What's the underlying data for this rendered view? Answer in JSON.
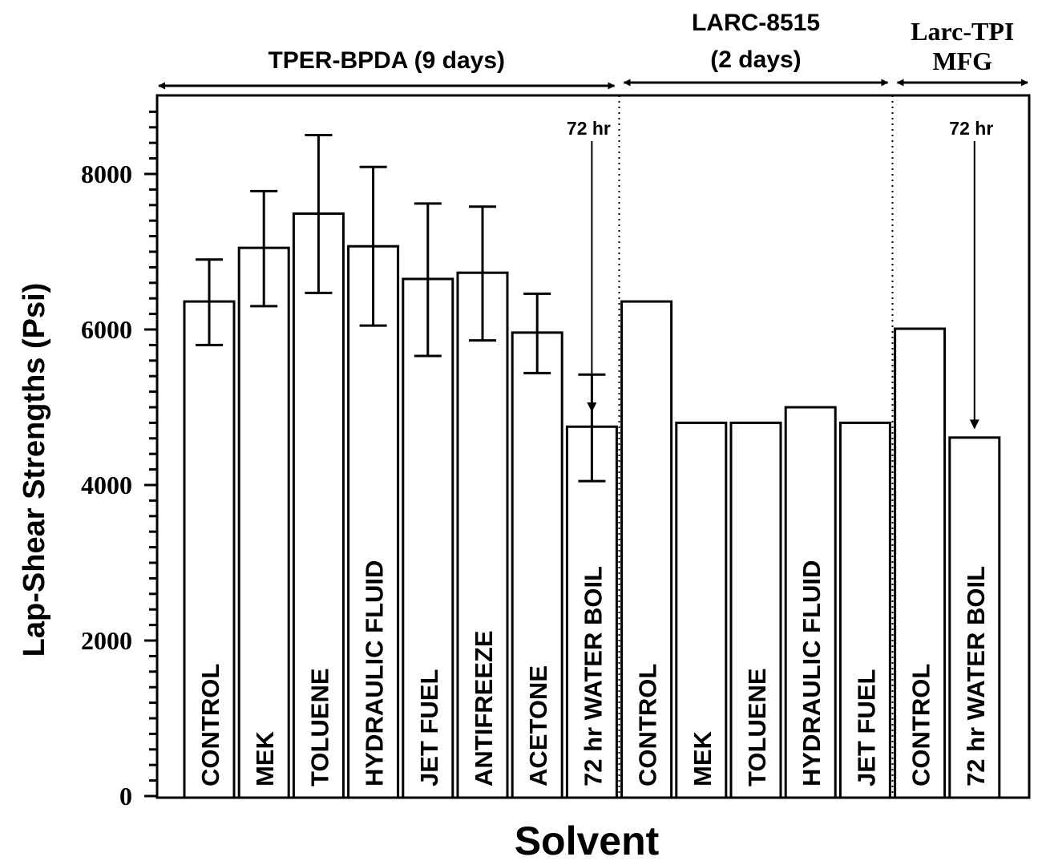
{
  "chart_data": {
    "type": "bar",
    "xlabel": "Solvent",
    "ylabel": "Lap-Shear Strengths (Psi)",
    "ylim": [
      0,
      8800
    ],
    "yticks": [
      0,
      2000,
      4000,
      6000,
      8000
    ],
    "yticks_minor_step": 200,
    "grid": false,
    "colors": {
      "bar_fill": "#ffffff",
      "stroke": "#000000"
    },
    "groups": [
      {
        "label": "TPER-BPDA (9 days)",
        "start": 0,
        "end": 8
      },
      {
        "label_lines": [
          "LARC-8515",
          "(2 days)"
        ],
        "start": 8,
        "end": 13
      },
      {
        "label_lines": [
          "Larc-TPI",
          "MFG"
        ],
        "start": 13,
        "end": 15
      }
    ],
    "bars": [
      {
        "category": "CONTROL",
        "value": 6360,
        "err_low": 5800,
        "err_high": 6900
      },
      {
        "category": "MEK",
        "value": 7050,
        "err_low": 6300,
        "err_high": 7780
      },
      {
        "category": "TOLUENE",
        "value": 7490,
        "err_low": 6470,
        "err_high": 8500
      },
      {
        "category": "HYDRAULIC FLUID",
        "value": 7070,
        "err_low": 6050,
        "err_high": 8090
      },
      {
        "category": "JET FUEL",
        "value": 6650,
        "err_low": 5660,
        "err_high": 7620
      },
      {
        "category": "ANTIFREEZE",
        "value": 6730,
        "err_low": 5860,
        "err_high": 7580
      },
      {
        "category": "ACETONE",
        "value": 5960,
        "err_low": 5440,
        "err_high": 6460
      },
      {
        "category": "72 hr WATER BOIL",
        "value": 4750,
        "err_low": 4050,
        "err_high": 5420
      },
      {
        "category": "CONTROL",
        "value": 6360
      },
      {
        "category": "MEK",
        "value": 4800
      },
      {
        "category": "TOLUENE",
        "value": 4800
      },
      {
        "category": "HYDRAULIC FLUID",
        "value": 5000
      },
      {
        "category": "JET FUEL",
        "value": 4800
      },
      {
        "category": "CONTROL",
        "value": 6010
      },
      {
        "category": "72 hr WATER BOIL",
        "value": 4610
      }
    ],
    "annotations": [
      {
        "text": "72 hr",
        "bar_index": 7,
        "arrow_tip_value": 4950
      },
      {
        "text": "72 hr",
        "bar_index": 14,
        "arrow_tip_value": 4730
      }
    ]
  }
}
